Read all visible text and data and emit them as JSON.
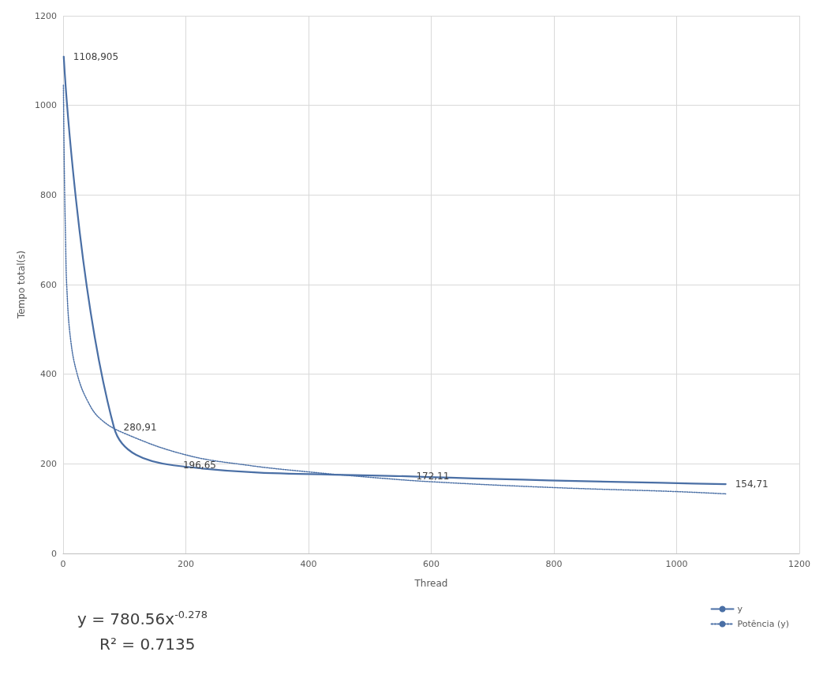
{
  "chart_data": {
    "type": "line",
    "xlabel": "Thread",
    "ylabel": "Tempo total(s)",
    "xlim": [
      0,
      1200
    ],
    "xticks": [
      0,
      200,
      400,
      600,
      800,
      1000,
      1200
    ],
    "ylim": [
      0,
      1200
    ],
    "yticks": [
      0,
      200,
      400,
      600,
      800,
      1000,
      1200
    ],
    "grid": true,
    "legend": "bottom right",
    "marker": "none",
    "series": [
      {
        "name": "y",
        "color": "#4a6fa5",
        "line_style": "solid",
        "x": [
          1,
          83,
          180,
          560,
          1080
        ],
        "values": [
          1108.905,
          280.91,
          196.65,
          172.11,
          154.71
        ],
        "value_labels": [
          "1108,905",
          "280,91",
          "196,65",
          "172,11",
          "154,71"
        ]
      },
      {
        "name": "Potência (y)",
        "color": "#4a6fa5",
        "line_style": "dotted",
        "x": [
          0.5,
          2,
          4,
          6,
          12,
          23,
          40,
          61,
          100,
          200,
          300,
          400,
          500,
          600,
          800,
          1000,
          1080
        ],
        "values": [
          1045,
          850,
          700,
          594,
          480,
          400,
          340,
          300,
          268,
          220,
          197,
          182,
          170,
          160,
          147,
          138,
          133
        ]
      }
    ],
    "annotations": [
      "y = 780.56x$^{-0.278}$",
      "R² = 0.7135"
    ]
  }
}
